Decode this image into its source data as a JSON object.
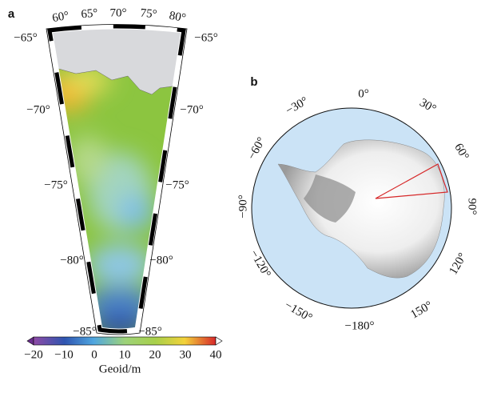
{
  "panel_a": {
    "label": "a",
    "longitude_labels": [
      "60°",
      "65°",
      "70°",
      "75°",
      "80°"
    ],
    "latitude_labels_left": [
      "−65°",
      "−70°",
      "−75°",
      "−80°",
      "−85°"
    ],
    "latitude_labels_right": [
      "−65°",
      "−70°",
      "−75°",
      "−80°",
      "−85°"
    ]
  },
  "colorbar": {
    "ticks": [
      "−20",
      "−10",
      "0",
      "10",
      "20",
      "30",
      "40"
    ],
    "title": "Geoid/m"
  },
  "panel_b": {
    "label": "b",
    "longitude_labels": [
      "0°",
      "30°",
      "60°",
      "90°",
      "120°",
      "150°",
      "−180°",
      "−150°",
      "−120°",
      "−90°",
      "−60°",
      "−30°"
    ]
  }
}
